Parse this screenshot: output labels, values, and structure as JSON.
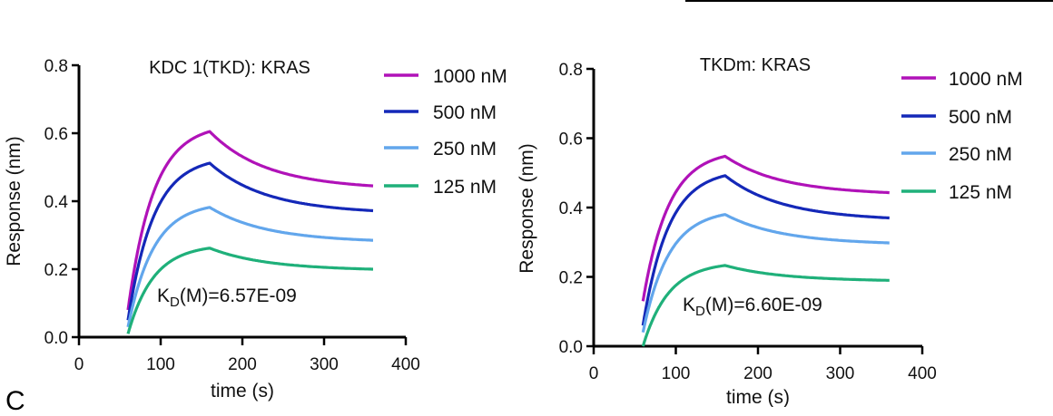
{
  "figure": {
    "panel_letter": "C"
  },
  "chart_data": [
    {
      "type": "line",
      "title": "KDC 1(TKD): KRAS",
      "xlabel": "time (s)",
      "ylabel": "Response (nm)",
      "xlim": [
        0,
        400
      ],
      "ylim": [
        0,
        0.8
      ],
      "xticks": [
        "0",
        "100",
        "200",
        "300",
        "400"
      ],
      "yticks": [
        "0.0",
        "0.2",
        "0.4",
        "0.6",
        "0.8"
      ],
      "annotation": {
        "prefix": "K",
        "subscript": "D",
        "suffix": "(M)=6.57E-09"
      },
      "legend": [
        "1000 nM",
        "500 nM",
        "250 nM",
        "125 nM"
      ],
      "series": [
        {
          "name": "1000 nM",
          "color": "#b012b8",
          "start": 0.08,
          "peak": 0.605,
          "end": 0.445
        },
        {
          "name": "500 nM",
          "color": "#1428b8",
          "start": 0.05,
          "peak": 0.512,
          "end": 0.372
        },
        {
          "name": "250 nM",
          "color": "#62a6ec",
          "start": 0.03,
          "peak": 0.382,
          "end": 0.285
        },
        {
          "name": "125 nM",
          "color": "#1fb07a",
          "start": 0.01,
          "peak": 0.262,
          "end": 0.2
        }
      ],
      "assoc_start": 60,
      "dissoc_start": 160,
      "end_time": 360
    },
    {
      "type": "line",
      "title": "TKDm: KRAS",
      "xlabel": "time (s)",
      "ylabel": "Response (nm)",
      "xlim": [
        0,
        400
      ],
      "ylim": [
        0,
        0.8
      ],
      "xticks": [
        "0",
        "100",
        "200",
        "300",
        "400"
      ],
      "yticks": [
        "0.0",
        "0.2",
        "0.4",
        "0.6",
        "0.8"
      ],
      "annotation": {
        "prefix": "K",
        "subscript": "D",
        "suffix": "(M)=6.60E-09"
      },
      "legend": [
        "1000 nM",
        "500 nM",
        "250 nM",
        "125 nM"
      ],
      "series": [
        {
          "name": "1000 nM",
          "color": "#b012b8",
          "start": 0.13,
          "peak": 0.548,
          "end": 0.443
        },
        {
          "name": "500 nM",
          "color": "#1428b8",
          "start": 0.06,
          "peak": 0.492,
          "end": 0.37
        },
        {
          "name": "250 nM",
          "color": "#62a6ec",
          "start": 0.04,
          "peak": 0.38,
          "end": 0.298
        },
        {
          "name": "125 nM",
          "color": "#1fb07a",
          "start": 0.0,
          "peak": 0.233,
          "end": 0.19
        }
      ],
      "assoc_start": 60,
      "dissoc_start": 160,
      "end_time": 360
    }
  ]
}
